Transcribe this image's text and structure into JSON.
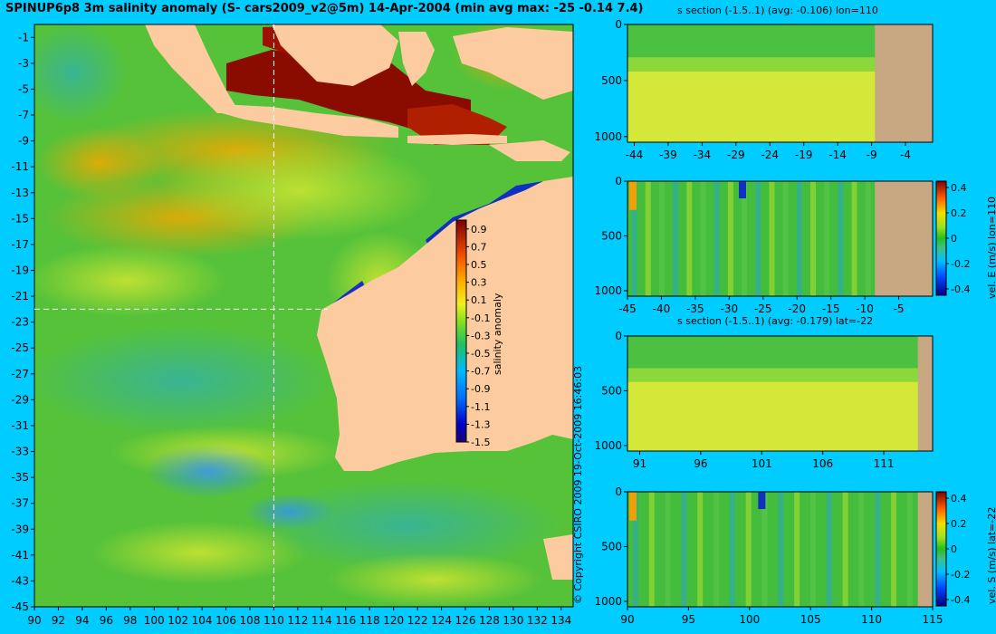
{
  "header": {
    "title": "SPINUP6p8 3m salinity anomaly (S- cars2009_v2@5m) 14-Apr-2004 (min avg max: -25 -0.14 7.4)",
    "copyright": "© Copyright CSIRO 2009  19-Oct-2009 16:46:03"
  },
  "colors": {
    "background": "#00ccff",
    "land": "#fccca0",
    "section_land": "#c8a882",
    "ocean_base": "#55c23a"
  },
  "chart_data": [
    {
      "id": "map",
      "type": "heatmap",
      "title": "SPINUP6p8 3m salinity anomaly (S- cars2009_v2@5m) 14-Apr-2004 (min avg max: -25 -0.14 7.4)",
      "xlabel": "",
      "ylabel": "",
      "xlim": [
        90,
        135
      ],
      "ylim": [
        -45,
        0
      ],
      "x_ticks": [
        90,
        92,
        94,
        96,
        98,
        100,
        102,
        104,
        106,
        108,
        110,
        112,
        114,
        116,
        118,
        120,
        122,
        124,
        126,
        128,
        130,
        132,
        134
      ],
      "y_ticks": [
        -1,
        -3,
        -5,
        -7,
        -9,
        -11,
        -13,
        -15,
        -17,
        -19,
        -21,
        -23,
        -25,
        -27,
        -29,
        -31,
        -33,
        -35,
        -37,
        -39,
        -41,
        -43,
        -45
      ],
      "section_lines": {
        "lon": 110,
        "lat": -22
      },
      "colorbar": {
        "label": "salinity anomaly",
        "ticks": [
          0.9,
          0.7,
          0.5,
          0.3,
          0.1,
          -0.1,
          -0.3,
          -0.5,
          -0.7,
          -0.9,
          -1.1,
          -1.3,
          -1.5
        ],
        "range": [
          -1.5,
          1.0
        ]
      }
    },
    {
      "id": "section-a",
      "type": "heatmap",
      "title": "s section (-1.5..1) (avg: -0.106) lon=110",
      "xlim": [
        -45,
        0
      ],
      "ylim": [
        1050,
        0
      ],
      "x_ticks": [
        -44,
        -39,
        -34,
        -29,
        -24,
        -19,
        -14,
        -9,
        -4
      ],
      "y_ticks": [
        0,
        500,
        1000
      ],
      "land_from_x": -8.5
    },
    {
      "id": "section-b",
      "type": "heatmap",
      "title": "",
      "xlim": [
        -45,
        0
      ],
      "ylim": [
        1050,
        0
      ],
      "x_ticks": [
        -45,
        -40,
        -35,
        -30,
        -25,
        -20,
        -15,
        -10,
        -5
      ],
      "y_ticks": [
        0,
        500,
        1000
      ],
      "land_from_x": -8.5,
      "colorbar": {
        "label": "vel. E (m/s) lon=110",
        "ticks": [
          0.4,
          0.2,
          0,
          -0.2,
          -0.4
        ],
        "range": [
          -0.45,
          0.45
        ]
      }
    },
    {
      "id": "section-c",
      "type": "heatmap",
      "title": "s section (-1.5..1) (avg: -0.179) lat=-22",
      "xlim": [
        90,
        115
      ],
      "ylim": [
        1050,
        0
      ],
      "x_ticks": [
        91,
        96,
        101,
        106,
        111
      ],
      "y_ticks": [
        0,
        500,
        1000
      ],
      "land_from_x": 113.8
    },
    {
      "id": "section-d",
      "type": "heatmap",
      "title": "",
      "xlim": [
        90,
        115
      ],
      "ylim": [
        1050,
        0
      ],
      "x_ticks": [
        90,
        95,
        100,
        105,
        110,
        115
      ],
      "y_ticks": [
        0,
        500,
        1000
      ],
      "land_from_x": 113.8,
      "colorbar": {
        "label": "vel. S (m/s) lat=-22",
        "ticks": [
          0.4,
          0.2,
          0,
          -0.2,
          -0.4
        ],
        "range": [
          -0.45,
          0.45
        ]
      }
    }
  ]
}
